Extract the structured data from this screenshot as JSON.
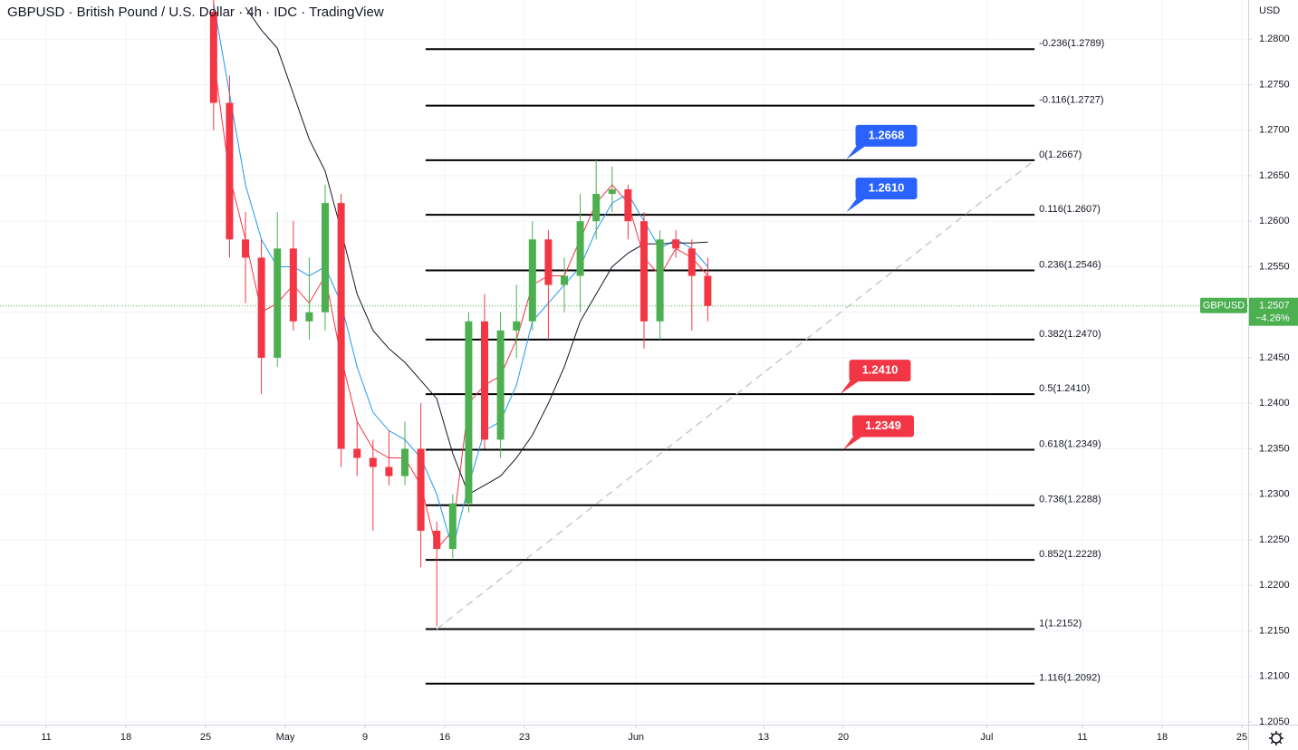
{
  "chart_data": {
    "type": "candlestick",
    "title": "GBPUSD · British Pound / U.S. Dollar · 4h · IDC · TradingView",
    "currency": "USD",
    "x": [
      10,
      11,
      12,
      13,
      14,
      15,
      16,
      17,
      18,
      19,
      20,
      21,
      22,
      23,
      24,
      25,
      26,
      27,
      28,
      29,
      30,
      31,
      32,
      33,
      34,
      35,
      36,
      37,
      38,
      39,
      40,
      41
    ],
    "open": [
      1.283,
      1.273,
      1.258,
      1.256,
      1.245,
      1.257,
      1.249,
      1.25,
      1.262,
      1.235,
      1.234,
      1.233,
      1.232,
      1.235,
      1.226,
      1.224,
      1.229,
      1.249,
      1.236,
      1.248,
      1.249,
      1.258,
      1.253,
      1.254,
      1.26,
      1.263,
      1.2635,
      1.26,
      1.249,
      1.258,
      1.257,
      1.254
    ],
    "high": [
      1.2843,
      1.276,
      1.261,
      1.258,
      1.261,
      1.26,
      1.256,
      1.264,
      1.263,
      1.238,
      1.236,
      1.237,
      1.238,
      1.24,
      1.227,
      1.23,
      1.25,
      1.252,
      1.25,
      1.253,
      1.26,
      1.259,
      1.256,
      1.263,
      1.2667,
      1.266,
      1.264,
      1.261,
      1.259,
      1.259,
      1.258,
      1.256
    ],
    "low": [
      1.27,
      1.256,
      1.251,
      1.241,
      1.244,
      1.248,
      1.247,
      1.248,
      1.233,
      1.232,
      1.226,
      1.231,
      1.231,
      1.222,
      1.2155,
      1.223,
      1.228,
      1.235,
      1.234,
      1.245,
      1.248,
      1.247,
      1.25,
      1.25,
      1.258,
      1.261,
      1.258,
      1.246,
      1.247,
      1.256,
      1.248,
      1.249
    ],
    "close": [
      1.273,
      1.258,
      1.256,
      1.245,
      1.257,
      1.249,
      1.25,
      1.262,
      1.235,
      1.234,
      1.233,
      1.232,
      1.235,
      1.226,
      1.224,
      1.229,
      1.249,
      1.236,
      1.248,
      1.249,
      1.258,
      1.253,
      1.254,
      1.26,
      1.263,
      1.2635,
      1.26,
      1.249,
      1.258,
      1.257,
      1.254,
      1.2507
    ],
    "up_color": "#4caf50",
    "down_color": "#f23645",
    "series": [
      {
        "color": "#f23645",
        "values": [
          1.278,
          1.265,
          1.258,
          1.25,
          1.251,
          1.253,
          1.251,
          1.254,
          1.245,
          1.238,
          1.235,
          1.234,
          1.234,
          1.231,
          1.224,
          1.226,
          1.24,
          1.242,
          1.243,
          1.247,
          1.253,
          1.254,
          1.254,
          1.258,
          1.262,
          1.264,
          1.262,
          1.256,
          1.254,
          1.257,
          1.256,
          1.254
        ]
      },
      {
        "color": "#2196f3",
        "values": [
          1.284,
          1.274,
          1.264,
          1.258,
          1.255,
          1.255,
          1.254,
          1.255,
          1.251,
          1.244,
          1.239,
          1.237,
          1.236,
          1.234,
          1.23,
          1.224,
          1.231,
          1.237,
          1.238,
          1.242,
          1.249,
          1.251,
          1.253,
          1.255,
          1.259,
          1.262,
          1.263,
          1.26,
          1.257,
          1.258,
          1.257,
          1.255
        ]
      },
      {
        "color": "#131722",
        "values": [
          null,
          null,
          1.2835,
          1.281,
          1.279,
          1.274,
          1.269,
          1.2655,
          1.259,
          1.252,
          1.248,
          1.246,
          1.2445,
          1.2425,
          1.2405,
          1.2345,
          1.23,
          1.231,
          1.232,
          1.234,
          1.2365,
          1.24,
          1.244,
          1.249,
          1.252,
          1.255,
          1.2565,
          1.2575,
          1.2575,
          1.2576,
          1.2576,
          1.2577
        ]
      }
    ],
    "fib_color": "#000000",
    "fib_x": [
      23.8,
      62
    ],
    "fib_levels": [
      {
        "label": "-0.236(1.2789)",
        "value": 1.2789
      },
      {
        "label": "-0.116(1.2727)",
        "value": 1.2727
      },
      {
        "label": "0(1.2667)",
        "value": 1.2667
      },
      {
        "label": "0.116(1.2607)",
        "value": 1.2607
      },
      {
        "label": "0.236(1.2546)",
        "value": 1.2546
      },
      {
        "label": "0.382(1.2470)",
        "value": 1.247
      },
      {
        "label": "0.5(1.2410)",
        "value": 1.241
      },
      {
        "label": "0.618(1.2349)",
        "value": 1.2349
      },
      {
        "label": "0.736(1.2288)",
        "value": 1.2288
      },
      {
        "label": "0.852(1.2228)",
        "value": 1.2228
      },
      {
        "label": "1(1.2152)",
        "value": 1.2152
      },
      {
        "label": "1.116(1.2092)",
        "value": 1.2092
      }
    ],
    "trendline": {
      "x": [
        24.5,
        62
      ],
      "y": [
        1.2152,
        1.2667
      ],
      "color": "#c8c8c8"
    },
    "callouts": [
      {
        "x": 50.2,
        "value": 1.2668,
        "label": "1.2668",
        "color": "#2962ff"
      },
      {
        "x": 50.2,
        "value": 1.261,
        "label": "1.2610",
        "color": "#2962ff"
      },
      {
        "x": 49.8,
        "value": 1.241,
        "label": "1.2410",
        "color": "#f23645"
      },
      {
        "x": 50.0,
        "value": 1.2349,
        "label": "1.2349",
        "color": "#f23645"
      }
    ],
    "last_price": {
      "name": "GBPUSD",
      "value": 1.2507,
      "change_label": "−4.26%",
      "color": "#4caf50"
    },
    "xlim": [
      -2.9,
      75.4
    ],
    "ylim": [
      1.2047,
      1.2843
    ],
    "xticks": [
      {
        "value": 0,
        "label": "11"
      },
      {
        "value": 5,
        "label": "18"
      },
      {
        "value": 10,
        "label": "25"
      },
      {
        "value": 15,
        "label": "May"
      },
      {
        "value": 20,
        "label": "9"
      },
      {
        "value": 25,
        "label": "16"
      },
      {
        "value": 30,
        "label": "23"
      },
      {
        "value": 37,
        "label": "Jun"
      },
      {
        "value": 45,
        "label": "13"
      },
      {
        "value": 50,
        "label": "20"
      },
      {
        "value": 59,
        "label": "Jul"
      },
      {
        "value": 65,
        "label": "11"
      },
      {
        "value": 70,
        "label": "18"
      },
      {
        "value": 75,
        "label": "25"
      }
    ],
    "yticks": [
      {
        "value": 1.205,
        "label": "1.2050"
      },
      {
        "value": 1.21,
        "label": "1.2100"
      },
      {
        "value": 1.215,
        "label": "1.2150"
      },
      {
        "value": 1.22,
        "label": "1.2200"
      },
      {
        "value": 1.225,
        "label": "1.2250"
      },
      {
        "value": 1.23,
        "label": "1.2300"
      },
      {
        "value": 1.235,
        "label": "1.2350"
      },
      {
        "value": 1.24,
        "label": "1.2400"
      },
      {
        "value": 1.245,
        "label": "1.2450"
      },
      {
        "value": 1.25,
        "label": "1.2500"
      },
      {
        "value": 1.255,
        "label": "1.2550"
      },
      {
        "value": 1.26,
        "label": "1.2600"
      },
      {
        "value": 1.265,
        "label": "1.2650"
      },
      {
        "value": 1.27,
        "label": "1.2700"
      },
      {
        "value": 1.275,
        "label": "1.2750"
      },
      {
        "value": 1.28,
        "label": "1.2800"
      }
    ],
    "grid": true
  }
}
